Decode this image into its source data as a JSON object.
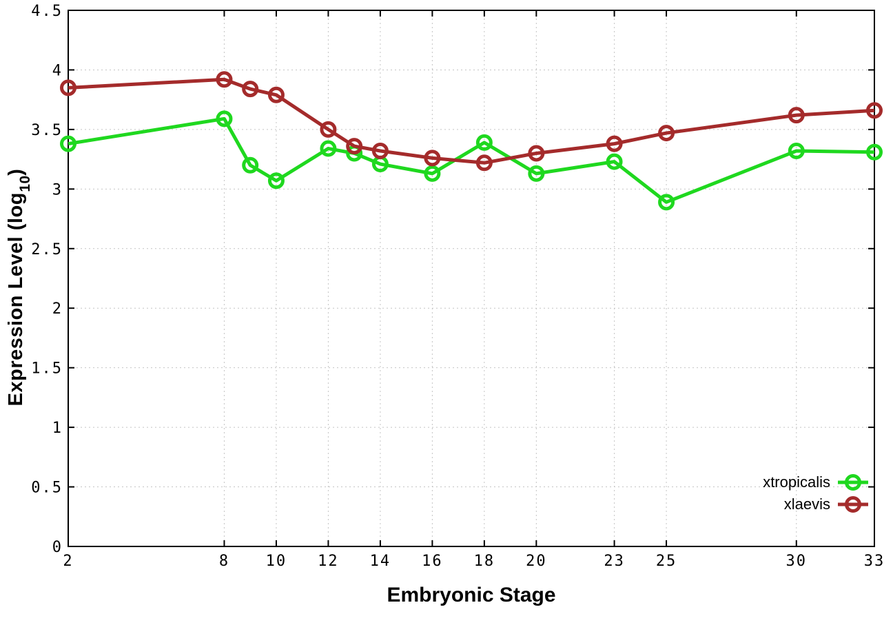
{
  "chart_data": {
    "type": "line",
    "title": "",
    "xlabel": "Embryonic Stage",
    "ylabel": {
      "main": "Expression Level (log",
      "sub": "10",
      "end": ")"
    },
    "xlim": [
      2,
      33
    ],
    "ylim": [
      0,
      4.5
    ],
    "grid": true,
    "legend_position": "inside bottom-right",
    "x_ticks": [
      "2",
      "8",
      "10",
      "12",
      "14",
      "16",
      "18",
      "20",
      "23",
      "25",
      "30",
      "33"
    ],
    "y_ticks": [
      "0",
      "0.5",
      "1",
      "1.5",
      "2",
      "2.5",
      "3",
      "3.5",
      "4",
      "4.5"
    ],
    "x": [
      2,
      8,
      9,
      10,
      12,
      13,
      14,
      16,
      18,
      20,
      23,
      25,
      30,
      33
    ],
    "series": [
      {
        "name": "xtropicalis",
        "color": "#1fd81f",
        "values": [
          3.38,
          3.59,
          3.2,
          3.07,
          3.34,
          3.3,
          3.21,
          3.13,
          3.39,
          3.13,
          3.23,
          2.89,
          3.32,
          3.31
        ]
      },
      {
        "name": "xlaevis",
        "color": "#a42b2b",
        "values": [
          3.85,
          3.92,
          3.84,
          3.79,
          3.5,
          3.36,
          3.32,
          3.26,
          3.22,
          3.3,
          3.38,
          3.47,
          3.62,
          3.66
        ]
      }
    ]
  }
}
